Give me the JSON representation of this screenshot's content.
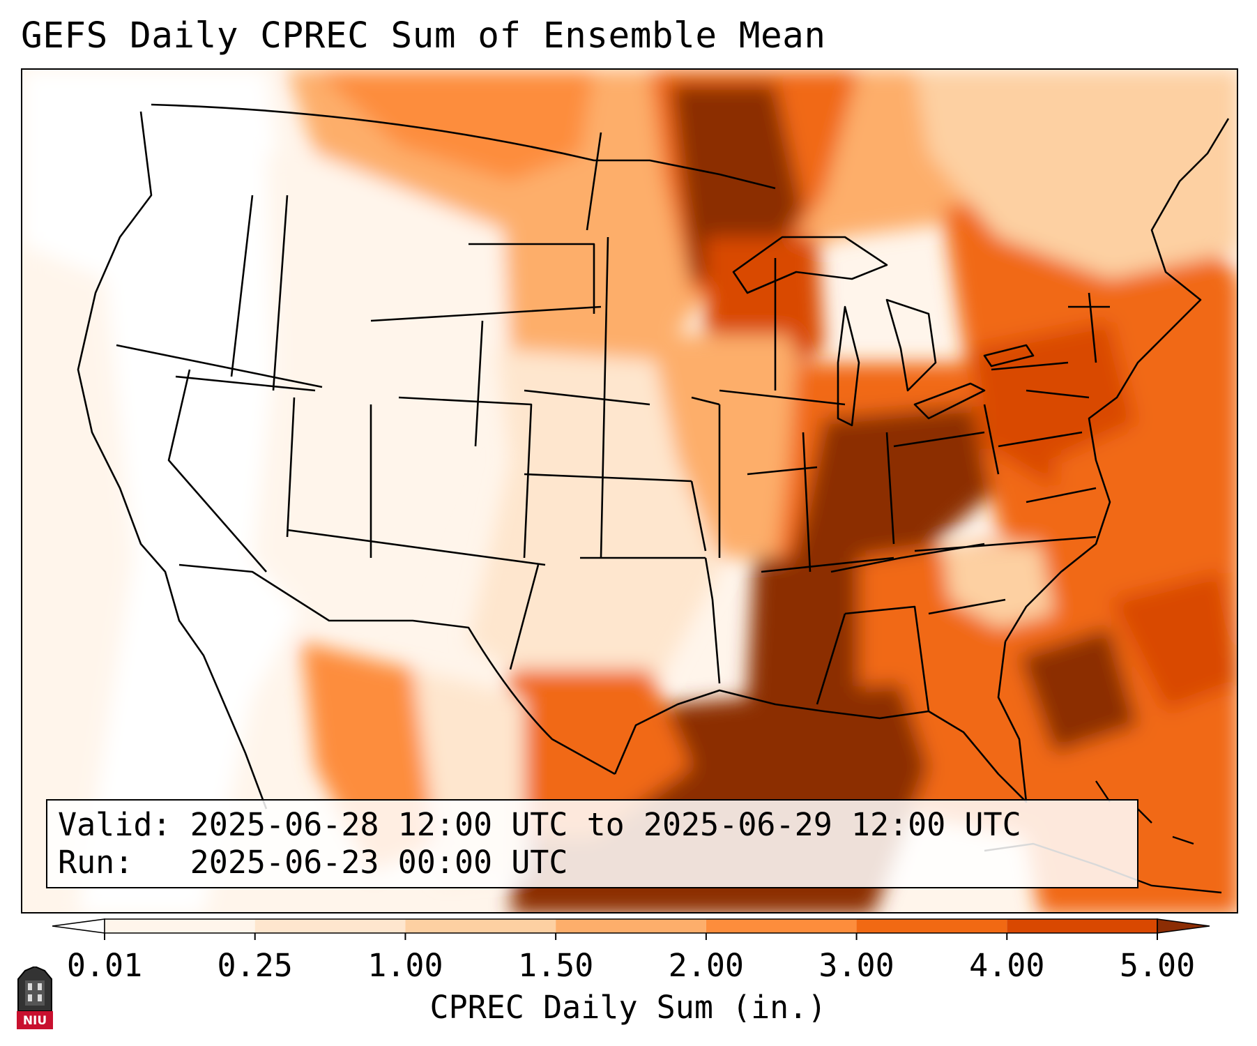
{
  "title": "GEFS Daily CPREC Sum of Ensemble Mean",
  "info": {
    "valid_line": "Valid: 2025-06-28 12:00 UTC to 2025-06-29 12:00 UTC",
    "run_line": "Run:   2025-06-23 00:00 UTC"
  },
  "colorbar": {
    "label": "CPREC Daily Sum (in.)",
    "ticks": [
      "0.01",
      "0.25",
      "1.00",
      "1.50",
      "2.00",
      "3.00",
      "4.00",
      "5.00"
    ],
    "colors": [
      "#fff5eb",
      "#fee6ce",
      "#fdd0a2",
      "#fdae6b",
      "#fd8d3c",
      "#f16913",
      "#d94801",
      "#8c2d04"
    ],
    "under_color": "#ffffff",
    "over_color": "#8c2d04"
  },
  "logo": {
    "text": "NIU",
    "accent": "#c8102e"
  },
  "map": {
    "region": "Contiguous United States",
    "heaviest_precip_areas": [
      "Gulf of Mexico",
      "Tennessee Valley",
      "Upper Midwest",
      "Western Atlantic"
    ]
  }
}
